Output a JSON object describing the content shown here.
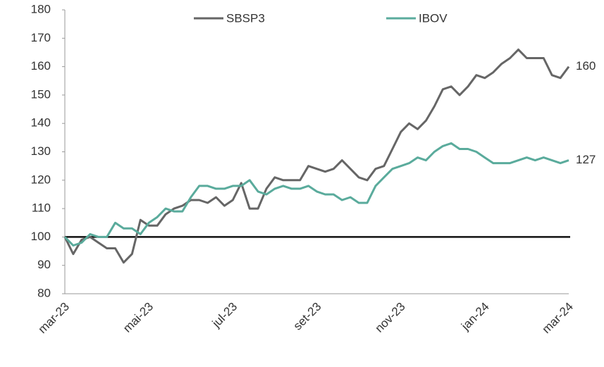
{
  "chart_data": {
    "type": "line",
    "categories": [
      "mar-23",
      null,
      null,
      null,
      null,
      null,
      null,
      null,
      null,
      null,
      "mai-23",
      null,
      null,
      null,
      null,
      null,
      null,
      null,
      null,
      null,
      "jul-23",
      null,
      null,
      null,
      null,
      null,
      null,
      null,
      null,
      null,
      "set-23",
      null,
      null,
      null,
      null,
      null,
      null,
      null,
      null,
      null,
      "nov-23",
      null,
      null,
      null,
      null,
      null,
      null,
      null,
      null,
      null,
      "jan-24",
      null,
      null,
      null,
      null,
      null,
      null,
      null,
      null,
      null,
      "mar-24"
    ],
    "series": [
      {
        "name": "SBSP3",
        "color": "#666666",
        "end_value": 160,
        "values": [
          100,
          94,
          99,
          100,
          98,
          96,
          96,
          91,
          94,
          106,
          104,
          104,
          108,
          110,
          111,
          113,
          113,
          112,
          114,
          111,
          113,
          119,
          110,
          110,
          117,
          121,
          120,
          120,
          120,
          125,
          124,
          123,
          124,
          127,
          124,
          121,
          120,
          124,
          125,
          131,
          137,
          140,
          138,
          141,
          146,
          152,
          153,
          150,
          153,
          157,
          156,
          158,
          161,
          163,
          166,
          163,
          163,
          163,
          157,
          156,
          160
        ]
      },
      {
        "name": "IBOV",
        "color": "#5aab9c",
        "end_value": 127,
        "values": [
          100,
          97,
          98,
          101,
          100,
          100,
          105,
          103,
          103,
          101,
          105,
          107,
          110,
          109,
          109,
          114,
          118,
          118,
          117,
          117,
          118,
          118,
          120,
          116,
          115,
          117,
          118,
          117,
          117,
          118,
          116,
          115,
          115,
          113,
          114,
          112,
          112,
          118,
          121,
          124,
          125,
          126,
          128,
          127,
          130,
          132,
          133,
          131,
          131,
          130,
          128,
          126,
          126,
          126,
          127,
          128,
          127,
          128,
          127,
          126,
          127
        ]
      }
    ],
    "reference_line": 100,
    "ylim": [
      80,
      180
    ],
    "yticks": [
      80,
      90,
      100,
      110,
      120,
      130,
      140,
      150,
      160,
      170,
      180
    ],
    "legend": "top",
    "grid": false
  }
}
